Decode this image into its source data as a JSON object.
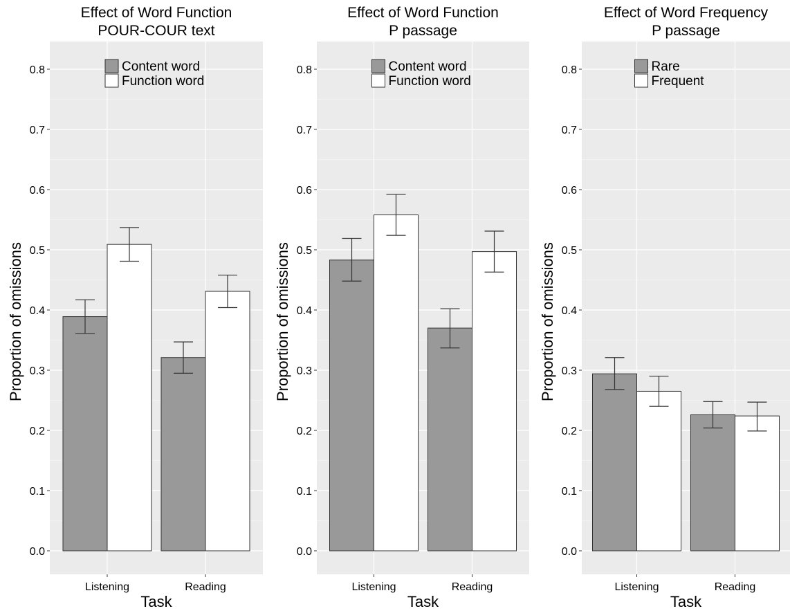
{
  "chart_data": [
    {
      "type": "bar",
      "title": "Effect of Word Function",
      "subtitle": "POUR-COUR text",
      "xlabel": "Task",
      "ylabel": "Proportion of omissions",
      "categories": [
        "Listening",
        "Reading"
      ],
      "ylim": [
        -0.035,
        0.85
      ],
      "yticks": [
        "0.0",
        "0.1",
        "0.2",
        "0.3",
        "0.4",
        "0.5",
        "0.6",
        "0.7",
        "0.8"
      ],
      "grid": true,
      "legend_position": "top-center",
      "series": [
        {
          "name": "Content word",
          "color": "#999999",
          "values": [
            0.389,
            0.321
          ],
          "err_low": [
            0.361,
            0.295
          ],
          "err_high": [
            0.417,
            0.347
          ]
        },
        {
          "name": "Function word",
          "color": "#ffffff",
          "values": [
            0.509,
            0.431
          ],
          "err_low": [
            0.481,
            0.404
          ],
          "err_high": [
            0.537,
            0.458
          ]
        }
      ]
    },
    {
      "type": "bar",
      "title": "Effect of Word Function",
      "subtitle": "P passage",
      "xlabel": "Task",
      "ylabel": "Proportion of omissions",
      "categories": [
        "Listening",
        "Reading"
      ],
      "ylim": [
        -0.035,
        0.85
      ],
      "yticks": [
        "0.0",
        "0.1",
        "0.2",
        "0.3",
        "0.4",
        "0.5",
        "0.6",
        "0.7",
        "0.8"
      ],
      "grid": true,
      "legend_position": "top-center",
      "series": [
        {
          "name": "Content word",
          "color": "#999999",
          "values": [
            0.483,
            0.37
          ],
          "err_low": [
            0.448,
            0.337
          ],
          "err_high": [
            0.519,
            0.402
          ]
        },
        {
          "name": "Function word",
          "color": "#ffffff",
          "values": [
            0.558,
            0.497
          ],
          "err_low": [
            0.524,
            0.463
          ],
          "err_high": [
            0.592,
            0.531
          ]
        }
      ]
    },
    {
      "type": "bar",
      "title": "Effect of Word Frequency",
      "subtitle": "P passage",
      "xlabel": "Task",
      "ylabel": "Proportion of omissions",
      "categories": [
        "Listening",
        "Reading"
      ],
      "ylim": [
        -0.035,
        0.85
      ],
      "yticks": [
        "0.0",
        "0.1",
        "0.2",
        "0.3",
        "0.4",
        "0.5",
        "0.6",
        "0.7",
        "0.8"
      ],
      "grid": true,
      "legend_position": "top-center",
      "series": [
        {
          "name": "Rare",
          "color": "#999999",
          "values": [
            0.294,
            0.226
          ],
          "err_low": [
            0.268,
            0.204
          ],
          "err_high": [
            0.321,
            0.248
          ]
        },
        {
          "name": "Frequent",
          "color": "#ffffff",
          "values": [
            0.265,
            0.224
          ],
          "err_low": [
            0.24,
            0.199
          ],
          "err_high": [
            0.29,
            0.247
          ]
        }
      ]
    }
  ],
  "colors": {
    "panel_background": "#ebebeb",
    "grid_major": "#ffffff",
    "bar_outline": "#333333"
  }
}
